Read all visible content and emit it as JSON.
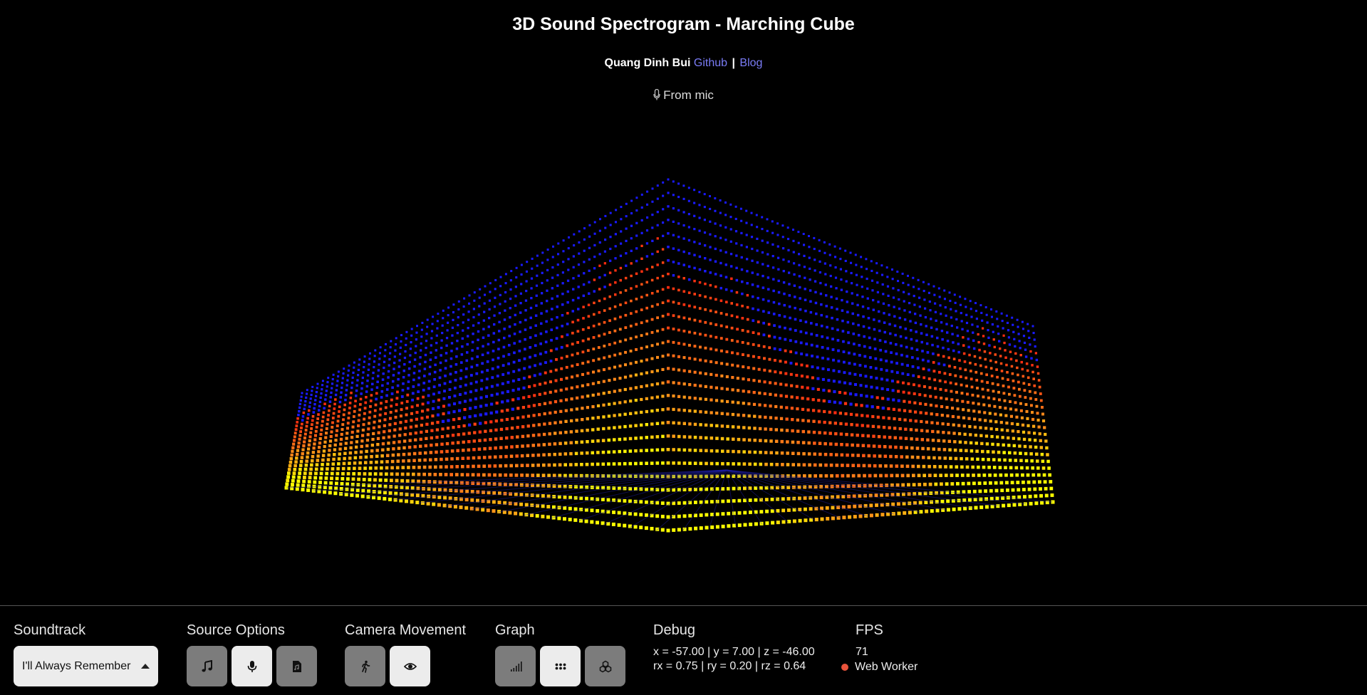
{
  "header": {
    "title": "3D Sound Spectrogram - Marching Cube",
    "author": "Quang Dinh Bui",
    "github_label": "Github",
    "separator": "|",
    "blog_label": "Blog",
    "source_status": "From mic"
  },
  "visualization": {
    "type": "3d-spectrogram-point-cloud",
    "colors": {
      "low": "#ffff00",
      "mid": "#ff2a10",
      "high": "#1a1aff"
    }
  },
  "panel": {
    "soundtrack": {
      "label": "Soundtrack",
      "selected": "I'll Always Remember"
    },
    "source_options": {
      "label": "Source Options",
      "buttons": [
        {
          "icon": "music-note-icon",
          "active": false
        },
        {
          "icon": "microphone-icon",
          "active": true
        },
        {
          "icon": "file-audio-icon",
          "active": false
        }
      ]
    },
    "camera_movement": {
      "label": "Camera Movement",
      "buttons": [
        {
          "icon": "walking-icon",
          "active": false
        },
        {
          "icon": "eye-icon",
          "active": true
        }
      ]
    },
    "graph": {
      "label": "Graph",
      "buttons": [
        {
          "icon": "signal-bars-icon",
          "active": false
        },
        {
          "icon": "dots-grid-icon",
          "active": true
        },
        {
          "icon": "cubes-icon",
          "active": false
        }
      ]
    },
    "debug": {
      "label": "Debug",
      "position_line": "x = -57.00 | y = 7.00 | z = -46.00",
      "rotation_line": "rx = 0.75 | ry = 0.20 | rz = 0.64"
    },
    "fps": {
      "label": "FPS",
      "value": "71",
      "worker_label": "Web Worker",
      "worker_color": "#e8533b"
    }
  }
}
